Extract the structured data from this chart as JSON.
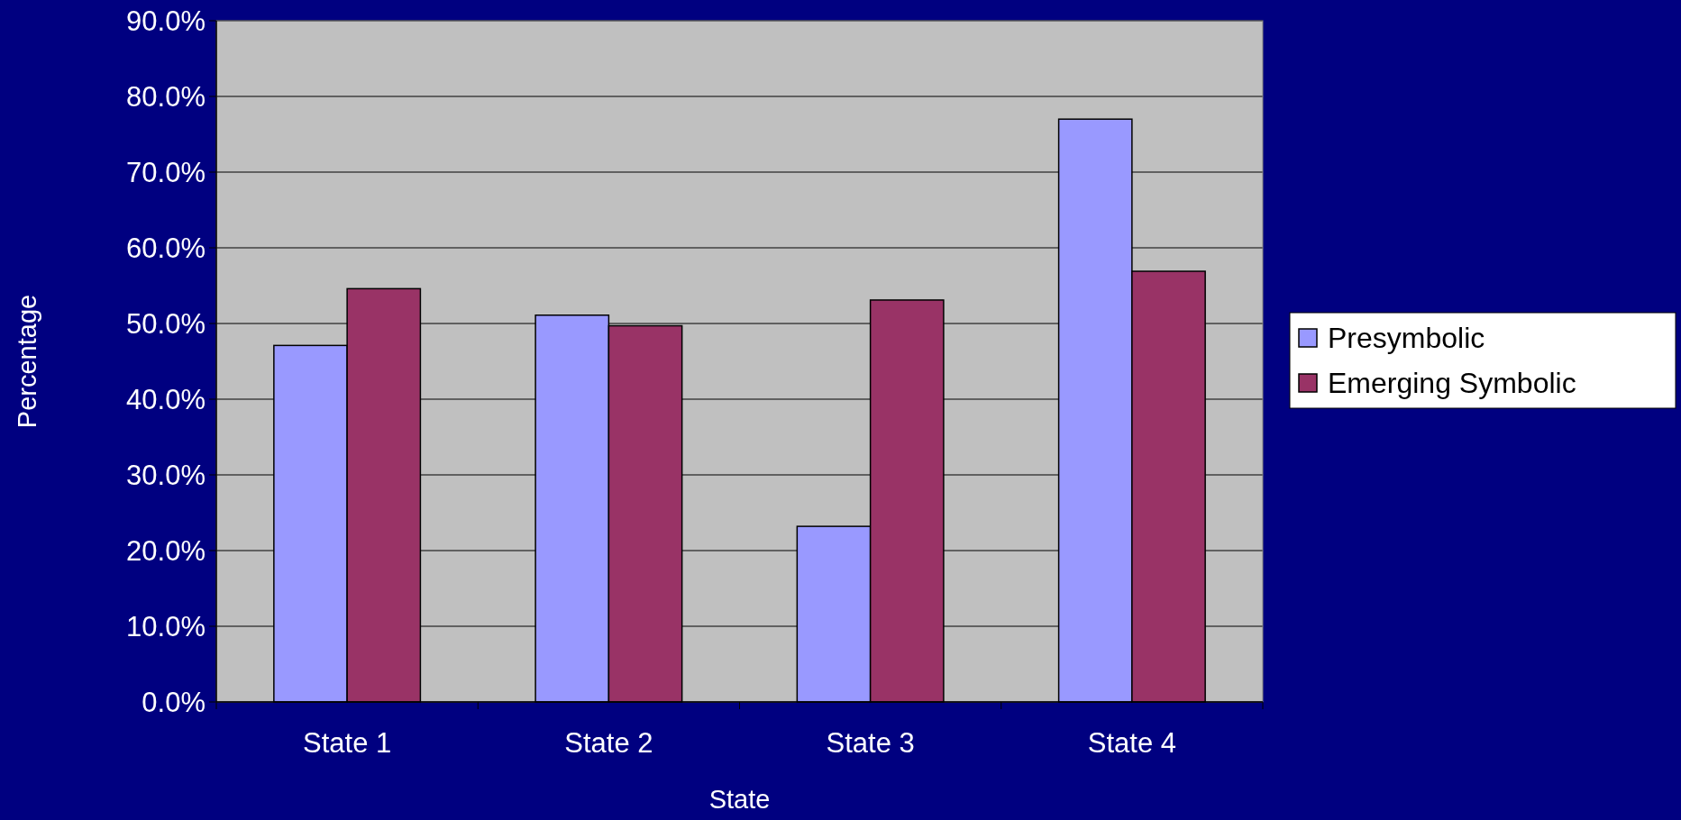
{
  "chart_data": {
    "type": "bar",
    "xlabel": "State",
    "ylabel": "Percentage",
    "categories": [
      "State 1",
      "State 2",
      "State 3",
      "State 4"
    ],
    "series": [
      {
        "name": "Presymbolic",
        "color": "#9999ff",
        "values": [
          47.1,
          51.1,
          23.2,
          77.0
        ]
      },
      {
        "name": "Emerging Symbolic",
        "color": "#993366",
        "values": [
          54.6,
          49.7,
          53.1,
          56.9
        ]
      }
    ],
    "ylim": [
      0,
      90
    ],
    "yticks": [
      {
        "value": 0,
        "label": "0.0%"
      },
      {
        "value": 10,
        "label": "10.0%"
      },
      {
        "value": 20,
        "label": "20.0%"
      },
      {
        "value": 30,
        "label": "30.0%"
      },
      {
        "value": 40,
        "label": "40.0%"
      },
      {
        "value": 50,
        "label": "50.0%"
      },
      {
        "value": 60,
        "label": "60.0%"
      },
      {
        "value": 70,
        "label": "70.0%"
      },
      {
        "value": 80,
        "label": "80.0%"
      },
      {
        "value": 90,
        "label": "90.0%"
      }
    ],
    "grid": "y",
    "legend": "right"
  }
}
